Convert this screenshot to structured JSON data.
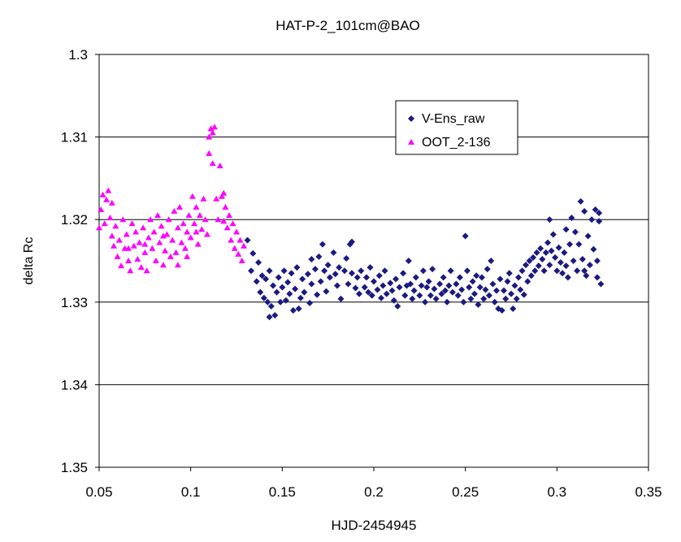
{
  "chart_data": {
    "type": "scatter",
    "title": "HAT-P-2_101cm@BAO",
    "xlabel": "HJD-2454945",
    "ylabel": "delta Rc",
    "xlim": [
      0.05,
      0.35
    ],
    "ylim": [
      1.3,
      1.35
    ],
    "y_reversed": true,
    "x_ticks": [
      "0.05",
      "0.1",
      "0.15",
      "0.2",
      "0.25",
      "0.3",
      "0.35"
    ],
    "y_ticks": [
      "1.3",
      "1.31",
      "1.32",
      "1.33",
      "1.34",
      "1.35"
    ],
    "grid": "horizontal",
    "legend_position": "top-right",
    "series": [
      {
        "name": "V-Ens_raw",
        "color": "#1a1a80",
        "marker": "diamond",
        "points": [
          [
            0.131,
            1.3225
          ],
          [
            0.133,
            1.3262
          ],
          [
            0.134,
            1.3241
          ],
          [
            0.136,
            1.3275
          ],
          [
            0.137,
            1.3252
          ],
          [
            0.138,
            1.3288
          ],
          [
            0.139,
            1.3268
          ],
          [
            0.14,
            1.3295
          ],
          [
            0.141,
            1.3272
          ],
          [
            0.142,
            1.33
          ],
          [
            0.143,
            1.3262
          ],
          [
            0.144,
            1.3305
          ],
          [
            0.145,
            1.328
          ],
          [
            0.146,
            1.3316
          ],
          [
            0.147,
            1.3288
          ],
          [
            0.148,
            1.327
          ],
          [
            0.149,
            1.33
          ],
          [
            0.15,
            1.3282
          ],
          [
            0.151,
            1.3262
          ],
          [
            0.152,
            1.3298
          ],
          [
            0.153,
            1.3276
          ],
          [
            0.154,
            1.329
          ],
          [
            0.155,
            1.3265
          ],
          [
            0.156,
            1.331
          ],
          [
            0.157,
            1.3284
          ],
          [
            0.158,
            1.3258
          ],
          [
            0.16,
            1.3295
          ],
          [
            0.161,
            1.3272
          ],
          [
            0.162,
            1.3288
          ],
          [
            0.164,
            1.3266
          ],
          [
            0.165,
            1.3301
          ],
          [
            0.166,
            1.3278
          ],
          [
            0.168,
            1.326
          ],
          [
            0.169,
            1.3291
          ],
          [
            0.17,
            1.3245
          ],
          [
            0.171,
            1.3275
          ],
          [
            0.172,
            1.323
          ],
          [
            0.173,
            1.3262
          ],
          [
            0.174,
            1.3287
          ],
          [
            0.175,
            1.3255
          ],
          [
            0.176,
            1.327
          ],
          [
            0.178,
            1.324
          ],
          [
            0.179,
            1.3266
          ],
          [
            0.18,
            1.328
          ],
          [
            0.181,
            1.3258
          ],
          [
            0.182,
            1.3296
          ],
          [
            0.184,
            1.3262
          ],
          [
            0.185,
            1.3247
          ],
          [
            0.186,
            1.3278
          ],
          [
            0.187,
            1.323
          ],
          [
            0.188,
            1.3265
          ],
          [
            0.19,
            1.3283
          ],
          [
            0.191,
            1.327
          ],
          [
            0.192,
            1.329
          ],
          [
            0.193,
            1.3262
          ],
          [
            0.195,
            1.3282
          ],
          [
            0.196,
            1.327
          ],
          [
            0.197,
            1.3288
          ],
          [
            0.198,
            1.3258
          ],
          [
            0.199,
            1.3292
          ],
          [
            0.2,
            1.3275
          ],
          [
            0.202,
            1.3285
          ],
          [
            0.203,
            1.3268
          ],
          [
            0.204,
            1.3295
          ],
          [
            0.205,
            1.328
          ],
          [
            0.206,
            1.3262
          ],
          [
            0.207,
            1.329
          ],
          [
            0.209,
            1.3277
          ],
          [
            0.21,
            1.3286
          ],
          [
            0.211,
            1.3298
          ],
          [
            0.212,
            1.3272
          ],
          [
            0.213,
            1.3305
          ],
          [
            0.214,
            1.3282
          ],
          [
            0.216,
            1.3265
          ],
          [
            0.217,
            1.3292
          ],
          [
            0.218,
            1.328
          ],
          [
            0.219,
            1.325
          ],
          [
            0.22,
            1.3278
          ],
          [
            0.221,
            1.3296
          ],
          [
            0.222,
            1.3286
          ],
          [
            0.223,
            1.327
          ],
          [
            0.225,
            1.3292
          ],
          [
            0.226,
            1.328
          ],
          [
            0.227,
            1.3262
          ],
          [
            0.228,
            1.33
          ],
          [
            0.229,
            1.3282
          ],
          [
            0.23,
            1.3275
          ],
          [
            0.231,
            1.3292
          ],
          [
            0.232,
            1.326
          ],
          [
            0.233,
            1.3284
          ],
          [
            0.234,
            1.3296
          ],
          [
            0.236,
            1.3278
          ],
          [
            0.237,
            1.329
          ],
          [
            0.238,
            1.327
          ],
          [
            0.239,
            1.3286
          ],
          [
            0.24,
            1.33
          ],
          [
            0.241,
            1.328
          ],
          [
            0.242,
            1.3262
          ],
          [
            0.243,
            1.3288
          ],
          [
            0.245,
            1.3278
          ],
          [
            0.246,
            1.3292
          ],
          [
            0.247,
            1.327
          ],
          [
            0.248,
            1.3285
          ],
          [
            0.249,
            1.33
          ],
          [
            0.25,
            1.322
          ],
          [
            0.251,
            1.3262
          ],
          [
            0.252,
            1.3282
          ],
          [
            0.253,
            1.3296
          ],
          [
            0.254,
            1.3275
          ],
          [
            0.255,
            1.329
          ],
          [
            0.256,
            1.3268
          ],
          [
            0.257,
            1.3303
          ],
          [
            0.258,
            1.3282
          ],
          [
            0.259,
            1.327
          ],
          [
            0.26,
            1.3296
          ],
          [
            0.261,
            1.3285
          ],
          [
            0.262,
            1.326
          ],
          [
            0.263,
            1.3292
          ],
          [
            0.264,
            1.325
          ],
          [
            0.265,
            1.3278
          ],
          [
            0.266,
            1.33
          ],
          [
            0.267,
            1.3286
          ],
          [
            0.268,
            1.3308
          ],
          [
            0.269,
            1.3272
          ],
          [
            0.27,
            1.331
          ],
          [
            0.271,
            1.3286
          ],
          [
            0.272,
            1.3296
          ],
          [
            0.273,
            1.3275
          ],
          [
            0.274,
            1.3265
          ],
          [
            0.275,
            1.329
          ],
          [
            0.276,
            1.3308
          ],
          [
            0.277,
            1.328
          ],
          [
            0.278,
            1.3296
          ],
          [
            0.279,
            1.327
          ],
          [
            0.28,
            1.3285
          ],
          [
            0.281,
            1.3262
          ],
          [
            0.282,
            1.3291
          ],
          [
            0.283,
            1.3255
          ],
          [
            0.284,
            1.3275
          ],
          [
            0.285,
            1.325
          ],
          [
            0.286,
            1.3268
          ],
          [
            0.287,
            1.3246
          ],
          [
            0.288,
            1.3262
          ],
          [
            0.289,
            1.324
          ],
          [
            0.29,
            1.3256
          ],
          [
            0.291,
            1.3235
          ],
          [
            0.292,
            1.3248
          ],
          [
            0.293,
            1.3262
          ],
          [
            0.294,
            1.324
          ],
          [
            0.295,
            1.3228
          ],
          [
            0.296,
            1.3255
          ],
          [
            0.297,
            1.3238
          ],
          [
            0.298,
            1.3218
          ],
          [
            0.299,
            1.3246
          ],
          [
            0.3,
            1.3262
          ],
          [
            0.301,
            1.3234
          ],
          [
            0.302,
            1.3252
          ],
          [
            0.303,
            1.3265
          ],
          [
            0.304,
            1.324
          ],
          [
            0.305,
            1.3256
          ],
          [
            0.306,
            1.327
          ],
          [
            0.307,
            1.323
          ],
          [
            0.308,
            1.3198
          ],
          [
            0.309,
            1.325
          ],
          [
            0.31,
            1.3215
          ],
          [
            0.311,
            1.3262
          ],
          [
            0.312,
            1.323
          ],
          [
            0.313,
            1.3178
          ],
          [
            0.314,
            1.3248
          ],
          [
            0.315,
            1.319
          ],
          [
            0.316,
            1.3268
          ],
          [
            0.317,
            1.322
          ],
          [
            0.318,
            1.3255
          ],
          [
            0.319,
            1.32
          ],
          [
            0.32,
            1.3236
          ],
          [
            0.321,
            1.3188
          ],
          [
            0.322,
            1.325
          ],
          [
            0.323,
            1.3202
          ],
          [
            0.324,
            1.3278
          ],
          [
            0.322,
            1.327
          ],
          [
            0.323,
            1.3192
          ],
          [
            0.315,
            1.3262
          ],
          [
            0.305,
            1.3212
          ],
          [
            0.296,
            1.32
          ],
          [
            0.143,
            1.3318
          ],
          [
            0.159,
            1.3308
          ],
          [
            0.188,
            1.3227
          ],
          [
            0.166,
            1.3248
          ]
        ]
      },
      {
        "name": "OOT_2-136",
        "color": "#ff00ff",
        "marker": "triangle",
        "points": [
          [
            0.05,
            1.321
          ],
          [
            0.051,
            1.3188
          ],
          [
            0.052,
            1.317
          ],
          [
            0.053,
            1.3205
          ],
          [
            0.054,
            1.3176
          ],
          [
            0.055,
            1.3165
          ],
          [
            0.056,
            1.3198
          ],
          [
            0.057,
            1.322
          ],
          [
            0.058,
            1.3232
          ],
          [
            0.059,
            1.3208
          ],
          [
            0.06,
            1.3245
          ],
          [
            0.061,
            1.3225
          ],
          [
            0.062,
            1.3256
          ],
          [
            0.063,
            1.32
          ],
          [
            0.064,
            1.3235
          ],
          [
            0.065,
            1.3218
          ],
          [
            0.066,
            1.325
          ],
          [
            0.067,
            1.3262
          ],
          [
            0.068,
            1.3205
          ],
          [
            0.069,
            1.3232
          ],
          [
            0.07,
            1.3215
          ],
          [
            0.071,
            1.3248
          ],
          [
            0.072,
            1.3228
          ],
          [
            0.073,
            1.3258
          ],
          [
            0.074,
            1.321
          ],
          [
            0.075,
            1.324
          ],
          [
            0.076,
            1.3262
          ],
          [
            0.077,
            1.3222
          ],
          [
            0.078,
            1.32
          ],
          [
            0.079,
            1.3235
          ],
          [
            0.08,
            1.3215
          ],
          [
            0.081,
            1.325
          ],
          [
            0.082,
            1.3195
          ],
          [
            0.083,
            1.3228
          ],
          [
            0.084,
            1.3208
          ],
          [
            0.085,
            1.3255
          ],
          [
            0.086,
            1.3238
          ],
          [
            0.087,
            1.3218
          ],
          [
            0.088,
            1.32
          ],
          [
            0.089,
            1.3245
          ],
          [
            0.09,
            1.3225
          ],
          [
            0.091,
            1.319
          ],
          [
            0.092,
            1.324
          ],
          [
            0.093,
            1.321
          ],
          [
            0.094,
            1.3185
          ],
          [
            0.095,
            1.3228
          ],
          [
            0.096,
            1.3205
          ],
          [
            0.097,
            1.3235
          ],
          [
            0.098,
            1.3215
          ],
          [
            0.099,
            1.3195
          ],
          [
            0.1,
            1.3222
          ],
          [
            0.101,
            1.3172
          ],
          [
            0.102,
            1.3205
          ],
          [
            0.103,
            1.3185
          ],
          [
            0.104,
            1.323
          ],
          [
            0.105,
            1.3195
          ],
          [
            0.106,
            1.3212
          ],
          [
            0.107,
            1.3175
          ],
          [
            0.108,
            1.32
          ],
          [
            0.109,
            1.3218
          ],
          [
            0.11,
            1.312
          ],
          [
            0.111,
            1.309
          ],
          [
            0.112,
            1.3132
          ],
          [
            0.113,
            1.3088
          ],
          [
            0.114,
            1.3175
          ],
          [
            0.115,
            1.32
          ],
          [
            0.116,
            1.3135
          ],
          [
            0.117,
            1.3172
          ],
          [
            0.118,
            1.3202
          ],
          [
            0.119,
            1.3185
          ],
          [
            0.12,
            1.321
          ],
          [
            0.121,
            1.3195
          ],
          [
            0.122,
            1.3225
          ],
          [
            0.123,
            1.3205
          ],
          [
            0.124,
            1.3235
          ],
          [
            0.125,
            1.3215
          ],
          [
            0.126,
            1.3242
          ],
          [
            0.127,
            1.3225
          ],
          [
            0.128,
            1.325
          ],
          [
            0.129,
            1.3232
          ],
          [
            0.11,
            1.31
          ],
          [
            0.112,
            1.3095
          ],
          [
            0.057,
            1.318
          ],
          [
            0.075,
            1.323
          ],
          [
            0.093,
            1.3255
          ],
          [
            0.103,
            1.3215
          ],
          [
            0.118,
            1.3168
          ],
          [
            0.066,
            1.3235
          ],
          [
            0.085,
            1.322
          ],
          [
            0.098,
            1.3245
          ]
        ]
      }
    ]
  }
}
